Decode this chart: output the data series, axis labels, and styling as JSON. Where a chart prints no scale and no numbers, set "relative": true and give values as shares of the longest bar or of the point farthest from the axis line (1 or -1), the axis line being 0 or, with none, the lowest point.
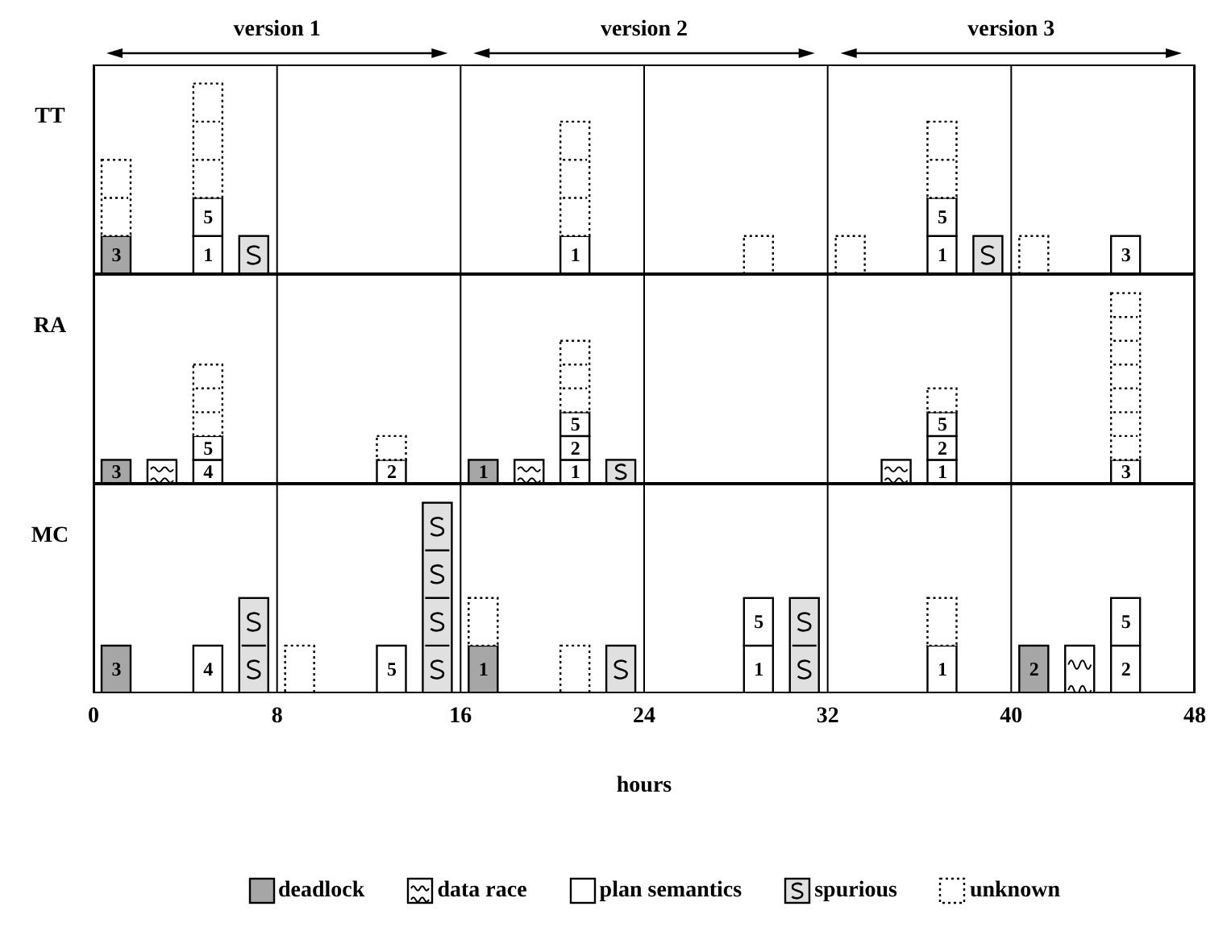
{
  "chart_data": [
    {
      "type": "bar",
      "stacked": true,
      "relative": true,
      "ylabel": "TT",
      "x": [
        1,
        5,
        7,
        21,
        29,
        33,
        37,
        39,
        41,
        45
      ],
      "xlim": [
        0,
        48
      ],
      "xticks": [
        0,
        8,
        16,
        24,
        32,
        40,
        48
      ],
      "grid": "x",
      "tick_labels": false,
      "annotations": [
        "version 1",
        "version 2",
        "version 3",
        {
          "text": "3",
          "x": 1,
          "y": 0.2
        },
        {
          "text": "1",
          "x": 5,
          "y": 0.2
        },
        {
          "text": "5",
          "x": 5,
          "y": 0.4
        },
        {
          "text": "1",
          "x": 21,
          "y": 0.2
        },
        {
          "text": "1",
          "x": 37,
          "y": 0.2
        },
        {
          "text": "5",
          "x": 37,
          "y": 0.4
        },
        {
          "text": "3",
          "x": 45,
          "y": 0.2
        }
      ],
      "series": [
        {
          "color": "#a6a6a6",
          "values": [
            0.2,
            null,
            null,
            null,
            null,
            null,
            null,
            null,
            null,
            null
          ]
        },
        {
          "color": "#ffffff",
          "values": [
            null,
            null,
            null,
            null,
            null,
            null,
            null,
            null,
            null,
            null
          ]
        },
        {
          "color": "#ffffff",
          "values": [
            null,
            0.2,
            null,
            0.2,
            null,
            null,
            0.2,
            null,
            null,
            0.2
          ]
        },
        {
          "color": "#ffffff",
          "values": [
            null,
            0.2,
            null,
            null,
            null,
            null,
            0.2,
            null,
            null,
            null
          ]
        },
        {
          "color": "#ffffff",
          "values": [
            null,
            null,
            null,
            null,
            null,
            null,
            null,
            null,
            null,
            null
          ]
        },
        {
          "color": "#e0e0e0",
          "values": [
            null,
            null,
            0.2,
            null,
            null,
            null,
            null,
            0.2,
            null,
            null
          ]
        },
        {
          "color": "#ffffff",
          "line_style": "dotted",
          "values": [
            0.4,
            0.6,
            null,
            0.6,
            0.2,
            0.2,
            0.4,
            null,
            0.2,
            null
          ]
        }
      ]
    },
    {
      "type": "bar",
      "stacked": true,
      "relative": true,
      "ylabel": "RA",
      "x": [
        1,
        3,
        5,
        13,
        17,
        19,
        21,
        23,
        35,
        37,
        45
      ],
      "xlim": [
        0,
        48
      ],
      "xticks": [
        0,
        8,
        16,
        24,
        32,
        40,
        48
      ],
      "grid": "x",
      "tick_labels": false,
      "annotations": [
        {
          "text": "3",
          "x": 1,
          "y": 0.125
        },
        {
          "text": "4",
          "x": 5,
          "y": 0.125
        },
        {
          "text": "5",
          "x": 5,
          "y": 0.25
        },
        {
          "text": "2",
          "x": 13,
          "y": 0.125
        },
        {
          "text": "1",
          "x": 17,
          "y": 0.125
        },
        {
          "text": "1",
          "x": 21,
          "y": 0.125
        },
        {
          "text": "2",
          "x": 21,
          "y": 0.25
        },
        {
          "text": "5",
          "x": 21,
          "y": 0.375
        },
        {
          "text": "1",
          "x": 37,
          "y": 0.125
        },
        {
          "text": "2",
          "x": 37,
          "y": 0.25
        },
        {
          "text": "5",
          "x": 37,
          "y": 0.375
        },
        {
          "text": "3",
          "x": 45,
          "y": 0.125
        }
      ],
      "series": [
        {
          "color": "#a6a6a6",
          "values": [
            0.125,
            null,
            null,
            null,
            0.125,
            null,
            null,
            null,
            null,
            null,
            null
          ]
        },
        {
          "color": "#ffffff",
          "values": [
            null,
            0.125,
            null,
            null,
            null,
            0.125,
            null,
            null,
            0.125,
            null,
            null
          ]
        },
        {
          "color": "#ffffff",
          "values": [
            null,
            null,
            0.125,
            0.125,
            null,
            null,
            0.125,
            null,
            null,
            0.125,
            0.125
          ]
        },
        {
          "color": "#ffffff",
          "values": [
            null,
            null,
            0.125,
            null,
            null,
            null,
            0.125,
            null,
            null,
            0.125,
            null
          ]
        },
        {
          "color": "#ffffff",
          "values": [
            null,
            null,
            null,
            null,
            null,
            null,
            0.125,
            null,
            null,
            0.125,
            null
          ]
        },
        {
          "color": "#e0e0e0",
          "values": [
            null,
            null,
            null,
            null,
            null,
            null,
            null,
            0.125,
            null,
            null,
            null
          ]
        },
        {
          "color": "#ffffff",
          "line_style": "dotted",
          "values": [
            null,
            null,
            0.375,
            0.125,
            null,
            null,
            0.375,
            null,
            null,
            0.125,
            0.875
          ]
        }
      ]
    },
    {
      "type": "bar",
      "stacked": true,
      "relative": true,
      "ylabel": "MC",
      "xlabel": "hours",
      "x": [
        1,
        5,
        7,
        9,
        13,
        15,
        17,
        21,
        23,
        29,
        31,
        37,
        41,
        43,
        45
      ],
      "xlim": [
        0,
        48
      ],
      "xticks": [
        0,
        8,
        16,
        24,
        32,
        40,
        48
      ],
      "grid": "x",
      "tick_labels": "x",
      "legend": "bottom",
      "annotations": [
        {
          "text": "3",
          "x": 1,
          "y": 0.25
        },
        {
          "text": "4",
          "x": 5,
          "y": 0.25
        },
        {
          "text": "5",
          "x": 13,
          "y": 0.25
        },
        {
          "text": "1",
          "x": 17,
          "y": 0.25
        },
        {
          "text": "1",
          "x": 29,
          "y": 0.25
        },
        {
          "text": "5",
          "x": 29,
          "y": 0.5
        },
        {
          "text": "1",
          "x": 37,
          "y": 0.25
        },
        {
          "text": "2",
          "x": 41,
          "y": 0.25
        },
        {
          "text": "2",
          "x": 45,
          "y": 0.25
        },
        {
          "text": "5",
          "x": 45,
          "y": 0.5
        }
      ],
      "series": [
        {
          "name": "deadlock",
          "color": "#a6a6a6",
          "values": [
            0.25,
            null,
            null,
            null,
            null,
            null,
            0.25,
            null,
            null,
            null,
            null,
            null,
            0.25,
            null,
            null
          ]
        },
        {
          "name": "data race",
          "color": "#ffffff",
          "values": [
            null,
            null,
            null,
            null,
            null,
            null,
            null,
            null,
            null,
            null,
            null,
            null,
            null,
            0.25,
            null
          ]
        },
        {
          "name": "plan semantics",
          "color": "#ffffff",
          "values": [
            null,
            0.25,
            null,
            null,
            0.25,
            null,
            null,
            null,
            null,
            0.25,
            null,
            0.25,
            null,
            null,
            0.25
          ]
        },
        {
          "color": "#ffffff",
          "values": [
            null,
            null,
            null,
            null,
            null,
            null,
            null,
            null,
            null,
            0.25,
            null,
            null,
            null,
            null,
            0.25
          ]
        },
        {
          "color": "#ffffff",
          "values": [
            null,
            null,
            null,
            null,
            null,
            null,
            null,
            null,
            null,
            null,
            null,
            null,
            null,
            null,
            null
          ]
        },
        {
          "name": "spurious",
          "color": "#e0e0e0",
          "values": [
            null,
            null,
            0.5,
            null,
            null,
            1,
            null,
            null,
            0.25,
            null,
            0.5,
            null,
            null,
            null,
            null
          ]
        },
        {
          "name": "unknown",
          "color": "#ffffff",
          "line_style": "dotted",
          "values": [
            null,
            null,
            null,
            0.25,
            null,
            null,
            0.25,
            0.25,
            null,
            null,
            null,
            0.25,
            null,
            null,
            null
          ]
        }
      ]
    }
  ]
}
